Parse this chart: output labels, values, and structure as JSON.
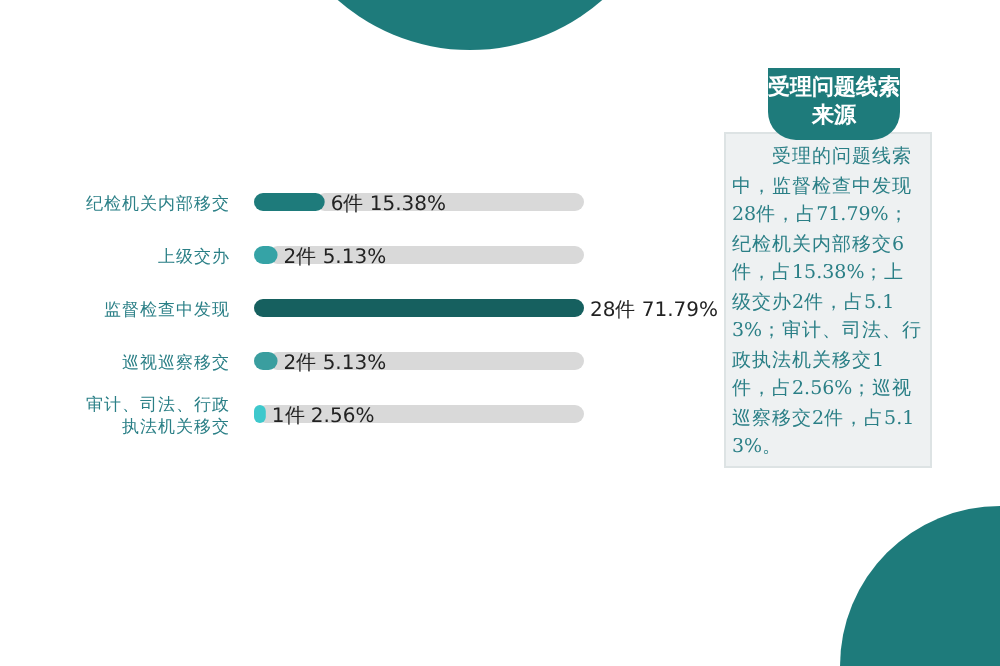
{
  "chart_data": {
    "type": "bar",
    "orientation": "horizontal",
    "title": "受理问题线索来源",
    "categories": [
      "纪检机关内部移交",
      "上级交办",
      "监督检查中发现",
      "巡视巡察移交",
      "审计、司法、行政执法机关移交"
    ],
    "values": [
      6,
      2,
      28,
      2,
      1
    ],
    "colors": [
      "#1e7b7b",
      "#35a3a6",
      "#16605f",
      "#3a9e9f",
      "#3ec8cc"
    ],
    "value_labels": [
      "6件 15.38%",
      "2件 5.13%",
      "28件 71.79%",
      "2件 5.13%",
      "1件 2.56%"
    ],
    "annotations": [
      "受理的问题线索中，监督检查中发现28件，占71.79%；纪检机关内部移交6件，占15.38%；上级交办2件，占5.13%；审计、司法、行政执法机关移交1件，占2.56%；巡视巡察移交2件，占5.13%。"
    ]
  }
}
